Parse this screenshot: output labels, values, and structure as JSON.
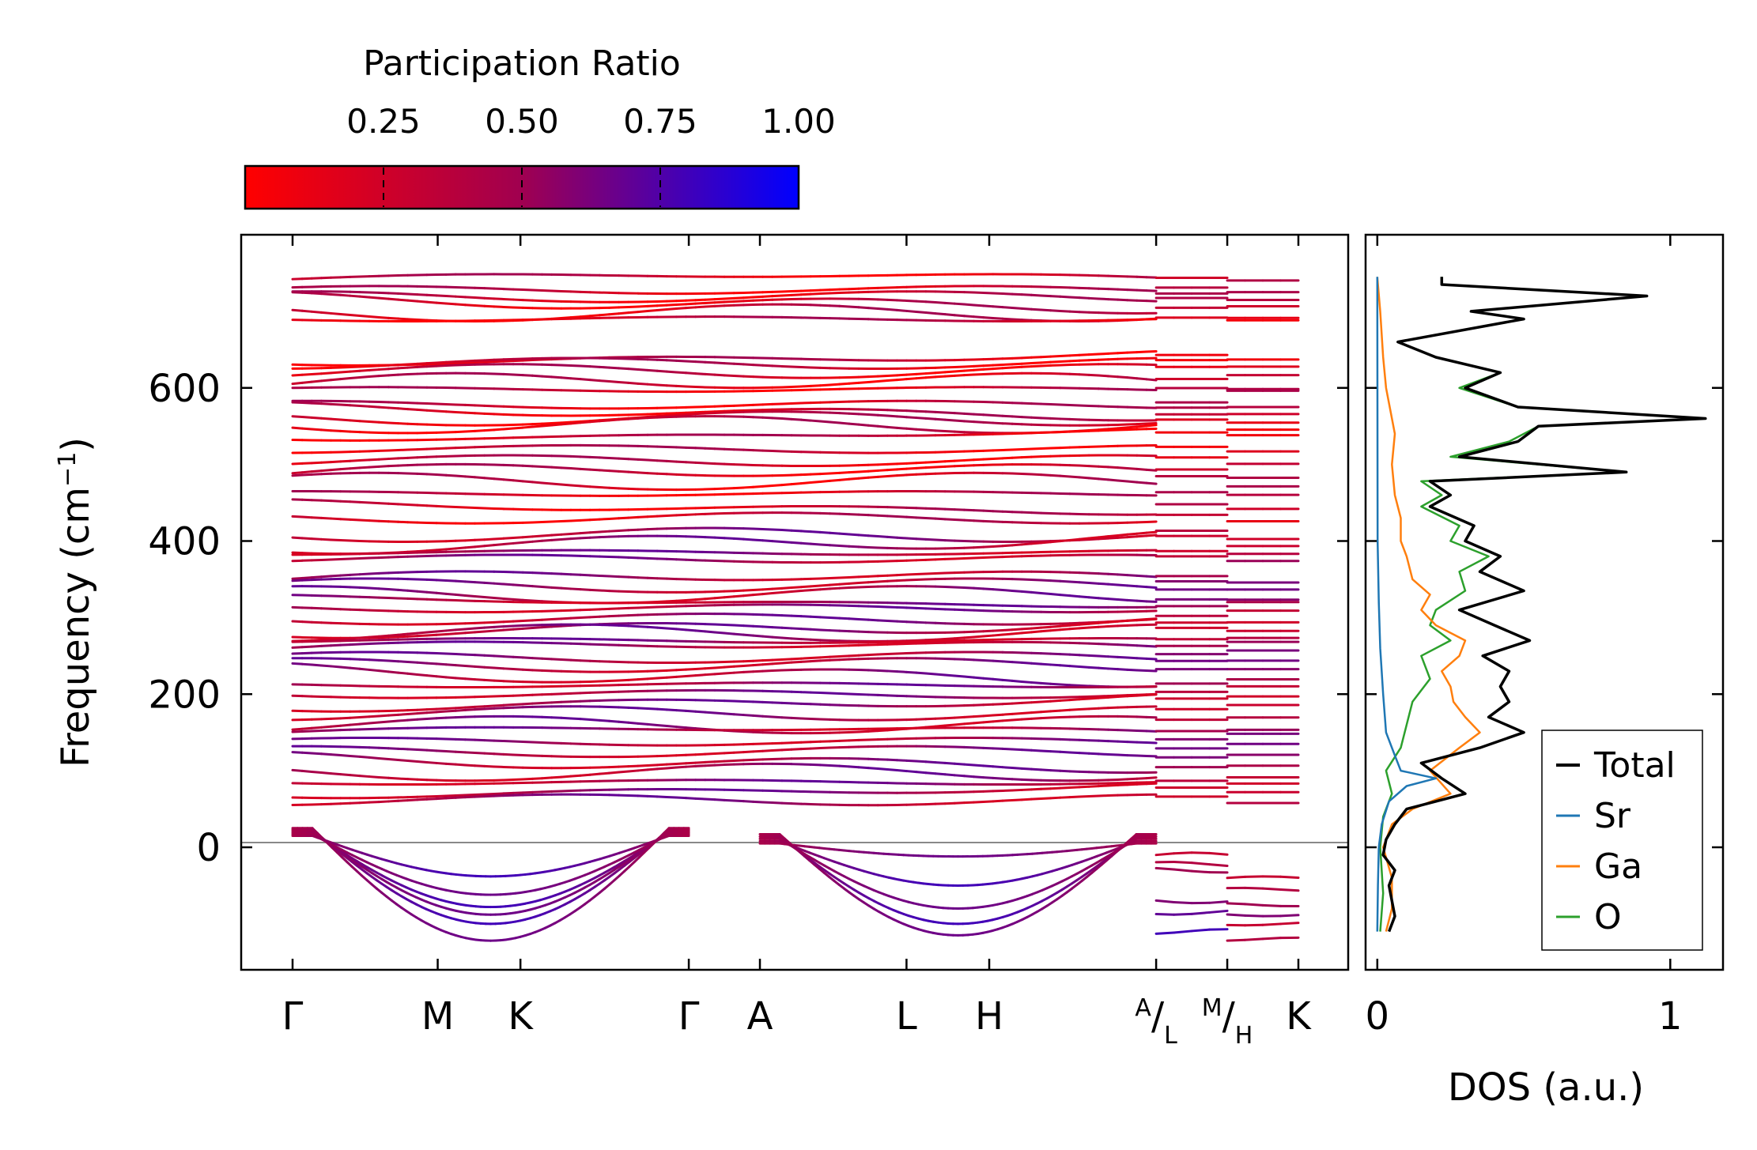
{
  "chart_data": [
    {
      "type": "line",
      "name": "phonon-band-structure",
      "ylabel": "Frequency (cm",
      "ylabel_sup": "−1",
      "ylabel_close": ")",
      "ylim": [
        -160,
        800
      ],
      "yticks": [
        0,
        200,
        400,
        600
      ],
      "ytick_labels": [
        "0",
        "200",
        "400",
        "600"
      ],
      "path_segments": [
        {
          "start": "Γ",
          "end": "K",
          "labels": [
            "Γ",
            "M",
            "K",
            "Γ",
            "A",
            "L",
            "H",
            "A"
          ]
        },
        {
          "start": "L",
          "end": "M",
          "labels": [
            "L",
            "M"
          ]
        },
        {
          "start": "H",
          "end": "K",
          "labels": [
            "H",
            "K"
          ]
        }
      ],
      "xticks": [
        {
          "pos": 0.0,
          "label": "Γ"
        },
        {
          "pos": 1.0,
          "label": "M"
        },
        {
          "pos": 1.57,
          "label": "K"
        },
        {
          "pos": 2.73,
          "label": "Γ"
        },
        {
          "pos": 3.22,
          "label": "A"
        },
        {
          "pos": 4.23,
          "label": "L"
        },
        {
          "pos": 4.8,
          "label": "H"
        },
        {
          "pos": 5.95,
          "label": "A",
          "sub": "L"
        },
        {
          "pos": 6.44,
          "label": "M",
          "sub": "H"
        },
        {
          "pos": 6.93,
          "label": "K"
        }
      ],
      "x_range": [
        0,
        6.93
      ],
      "flat_band_levels": [
        742,
        728,
        719,
        712,
        698,
        690,
        640,
        632,
        622,
        605,
        598,
        578,
        570,
        560,
        552,
        540,
        520,
        505,
        488,
        478,
        462,
        445,
        430,
        408,
        400,
        385,
        377,
        350,
        342,
        330,
        322,
        312,
        298,
        288,
        280,
        270,
        260,
        248,
        238,
        226,
        212,
        200,
        190,
        175,
        160,
        150,
        138,
        125,
        112,
        98,
        85,
        75,
        62
      ],
      "soft_modes": [
        {
          "path": "Γ-M-K-Γ",
          "min": -122
        },
        {
          "path": "Γ-M-K-Γ",
          "min": -100
        },
        {
          "path": "Γ-M-K-Γ",
          "min": -88
        },
        {
          "path": "Γ-M-K-Γ",
          "min": -78
        },
        {
          "path": "Γ-M-K-Γ",
          "min": -62
        },
        {
          "path": "Γ-M-K-Γ",
          "min": -38
        },
        {
          "path": "A-L-H-A",
          "min": -115
        },
        {
          "path": "A-L-H-A",
          "min": -100
        },
        {
          "path": "A-L-H-A",
          "min": -80
        },
        {
          "path": "A-L-H-A",
          "min": -50
        },
        {
          "path": "A-L-H-A",
          "min": -12
        }
      ],
      "short_segment_levels": [
        -10,
        -22,
        -30,
        -70,
        -85,
        -110
      ],
      "right_segment_levels": [
        -40,
        -55,
        -75,
        -88,
        -100,
        -120
      ],
      "colorbar": {
        "title": "Participation Ratio",
        "ticks": [
          0.25,
          0.5,
          0.75,
          1.0
        ],
        "tick_labels": [
          "0.25",
          "0.50",
          "0.75",
          "1.00"
        ],
        "range": [
          0.0,
          1.0
        ],
        "color_low": "#ff0000",
        "color_mid": "#a00050",
        "color_high": "#0000ff"
      }
    },
    {
      "type": "line",
      "name": "density-of-states",
      "xlabel": "DOS (a.u.)",
      "xlim": [
        -0.04,
        1.18
      ],
      "xticks": [
        0,
        1
      ],
      "xtick_labels": [
        "0",
        "1"
      ],
      "ylim": [
        -160,
        800
      ],
      "legend_position": "bottom-right",
      "series": [
        {
          "name": "Total",
          "color": "#000000",
          "points": [
            [
              -110,
              0.04
            ],
            [
              -90,
              0.06
            ],
            [
              -70,
              0.05
            ],
            [
              -50,
              0.04
            ],
            [
              -30,
              0.06
            ],
            [
              -10,
              0.02
            ],
            [
              10,
              0.03
            ],
            [
              30,
              0.06
            ],
            [
              50,
              0.1
            ],
            [
              70,
              0.3
            ],
            [
              90,
              0.22
            ],
            [
              110,
              0.15
            ],
            [
              130,
              0.35
            ],
            [
              150,
              0.5
            ],
            [
              170,
              0.38
            ],
            [
              190,
              0.45
            ],
            [
              210,
              0.42
            ],
            [
              230,
              0.45
            ],
            [
              250,
              0.36
            ],
            [
              270,
              0.52
            ],
            [
              290,
              0.4
            ],
            [
              310,
              0.28
            ],
            [
              335,
              0.5
            ],
            [
              360,
              0.35
            ],
            [
              380,
              0.42
            ],
            [
              400,
              0.3
            ],
            [
              420,
              0.33
            ],
            [
              445,
              0.18
            ],
            [
              460,
              0.25
            ],
            [
              478,
              0.18
            ],
            [
              490,
              0.85
            ],
            [
              510,
              0.28
            ],
            [
              530,
              0.48
            ],
            [
              550,
              0.55
            ],
            [
              560,
              1.12
            ],
            [
              575,
              0.48
            ],
            [
              600,
              0.3
            ],
            [
              620,
              0.42
            ],
            [
              640,
              0.2
            ],
            [
              660,
              0.07
            ],
            [
              690,
              0.5
            ],
            [
              700,
              0.32
            ],
            [
              720,
              0.92
            ],
            [
              735,
              0.22
            ],
            [
              745,
              0.22
            ]
          ]
        },
        {
          "name": "Sr",
          "color": "#1f77b4",
          "points": [
            [
              -110,
              0.0
            ],
            [
              -50,
              0.002
            ],
            [
              0,
              0.005
            ],
            [
              30,
              0.015
            ],
            [
              60,
              0.04
            ],
            [
              80,
              0.1
            ],
            [
              90,
              0.2
            ],
            [
              100,
              0.08
            ],
            [
              120,
              0.06
            ],
            [
              150,
              0.03
            ],
            [
              200,
              0.02
            ],
            [
              260,
              0.01
            ],
            [
              320,
              0.005
            ],
            [
              400,
              0.001
            ],
            [
              745,
              0.0
            ]
          ]
        },
        {
          "name": "Ga",
          "color": "#ff7f0e",
          "points": [
            [
              -110,
              0.03
            ],
            [
              -80,
              0.05
            ],
            [
              -40,
              0.05
            ],
            [
              0,
              0.02
            ],
            [
              30,
              0.05
            ],
            [
              50,
              0.12
            ],
            [
              70,
              0.25
            ],
            [
              100,
              0.18
            ],
            [
              130,
              0.28
            ],
            [
              150,
              0.35
            ],
            [
              170,
              0.3
            ],
            [
              190,
              0.26
            ],
            [
              210,
              0.25
            ],
            [
              230,
              0.22
            ],
            [
              250,
              0.28
            ],
            [
              270,
              0.3
            ],
            [
              290,
              0.2
            ],
            [
              310,
              0.15
            ],
            [
              330,
              0.18
            ],
            [
              350,
              0.12
            ],
            [
              380,
              0.1
            ],
            [
              400,
              0.08
            ],
            [
              430,
              0.08
            ],
            [
              460,
              0.06
            ],
            [
              500,
              0.05
            ],
            [
              540,
              0.06
            ],
            [
              560,
              0.05
            ],
            [
              600,
              0.03
            ],
            [
              640,
              0.02
            ],
            [
              700,
              0.01
            ],
            [
              745,
              0.0
            ]
          ]
        },
        {
          "name": "O",
          "color": "#2ca02c",
          "points": [
            [
              -110,
              0.01
            ],
            [
              -60,
              0.02
            ],
            [
              0,
              0.01
            ],
            [
              40,
              0.02
            ],
            [
              70,
              0.05
            ],
            [
              100,
              0.03
            ],
            [
              130,
              0.08
            ],
            [
              160,
              0.1
            ],
            [
              190,
              0.12
            ],
            [
              220,
              0.18
            ],
            [
              250,
              0.15
            ],
            [
              270,
              0.25
            ],
            [
              290,
              0.18
            ],
            [
              310,
              0.2
            ],
            [
              335,
              0.3
            ],
            [
              360,
              0.28
            ],
            [
              380,
              0.38
            ],
            [
              400,
              0.25
            ],
            [
              420,
              0.28
            ],
            [
              445,
              0.15
            ],
            [
              460,
              0.22
            ],
            [
              478,
              0.15
            ],
            [
              490,
              0.85
            ],
            [
              510,
              0.25
            ],
            [
              530,
              0.45
            ],
            [
              550,
              0.55
            ],
            [
              560,
              1.12
            ],
            [
              575,
              0.48
            ],
            [
              600,
              0.28
            ],
            [
              620,
              0.42
            ],
            [
              640,
              0.2
            ],
            [
              660,
              0.07
            ],
            [
              690,
              0.5
            ],
            [
              700,
              0.32
            ],
            [
              720,
              0.92
            ],
            [
              735,
              0.22
            ],
            [
              745,
              0.22
            ]
          ]
        }
      ]
    }
  ]
}
